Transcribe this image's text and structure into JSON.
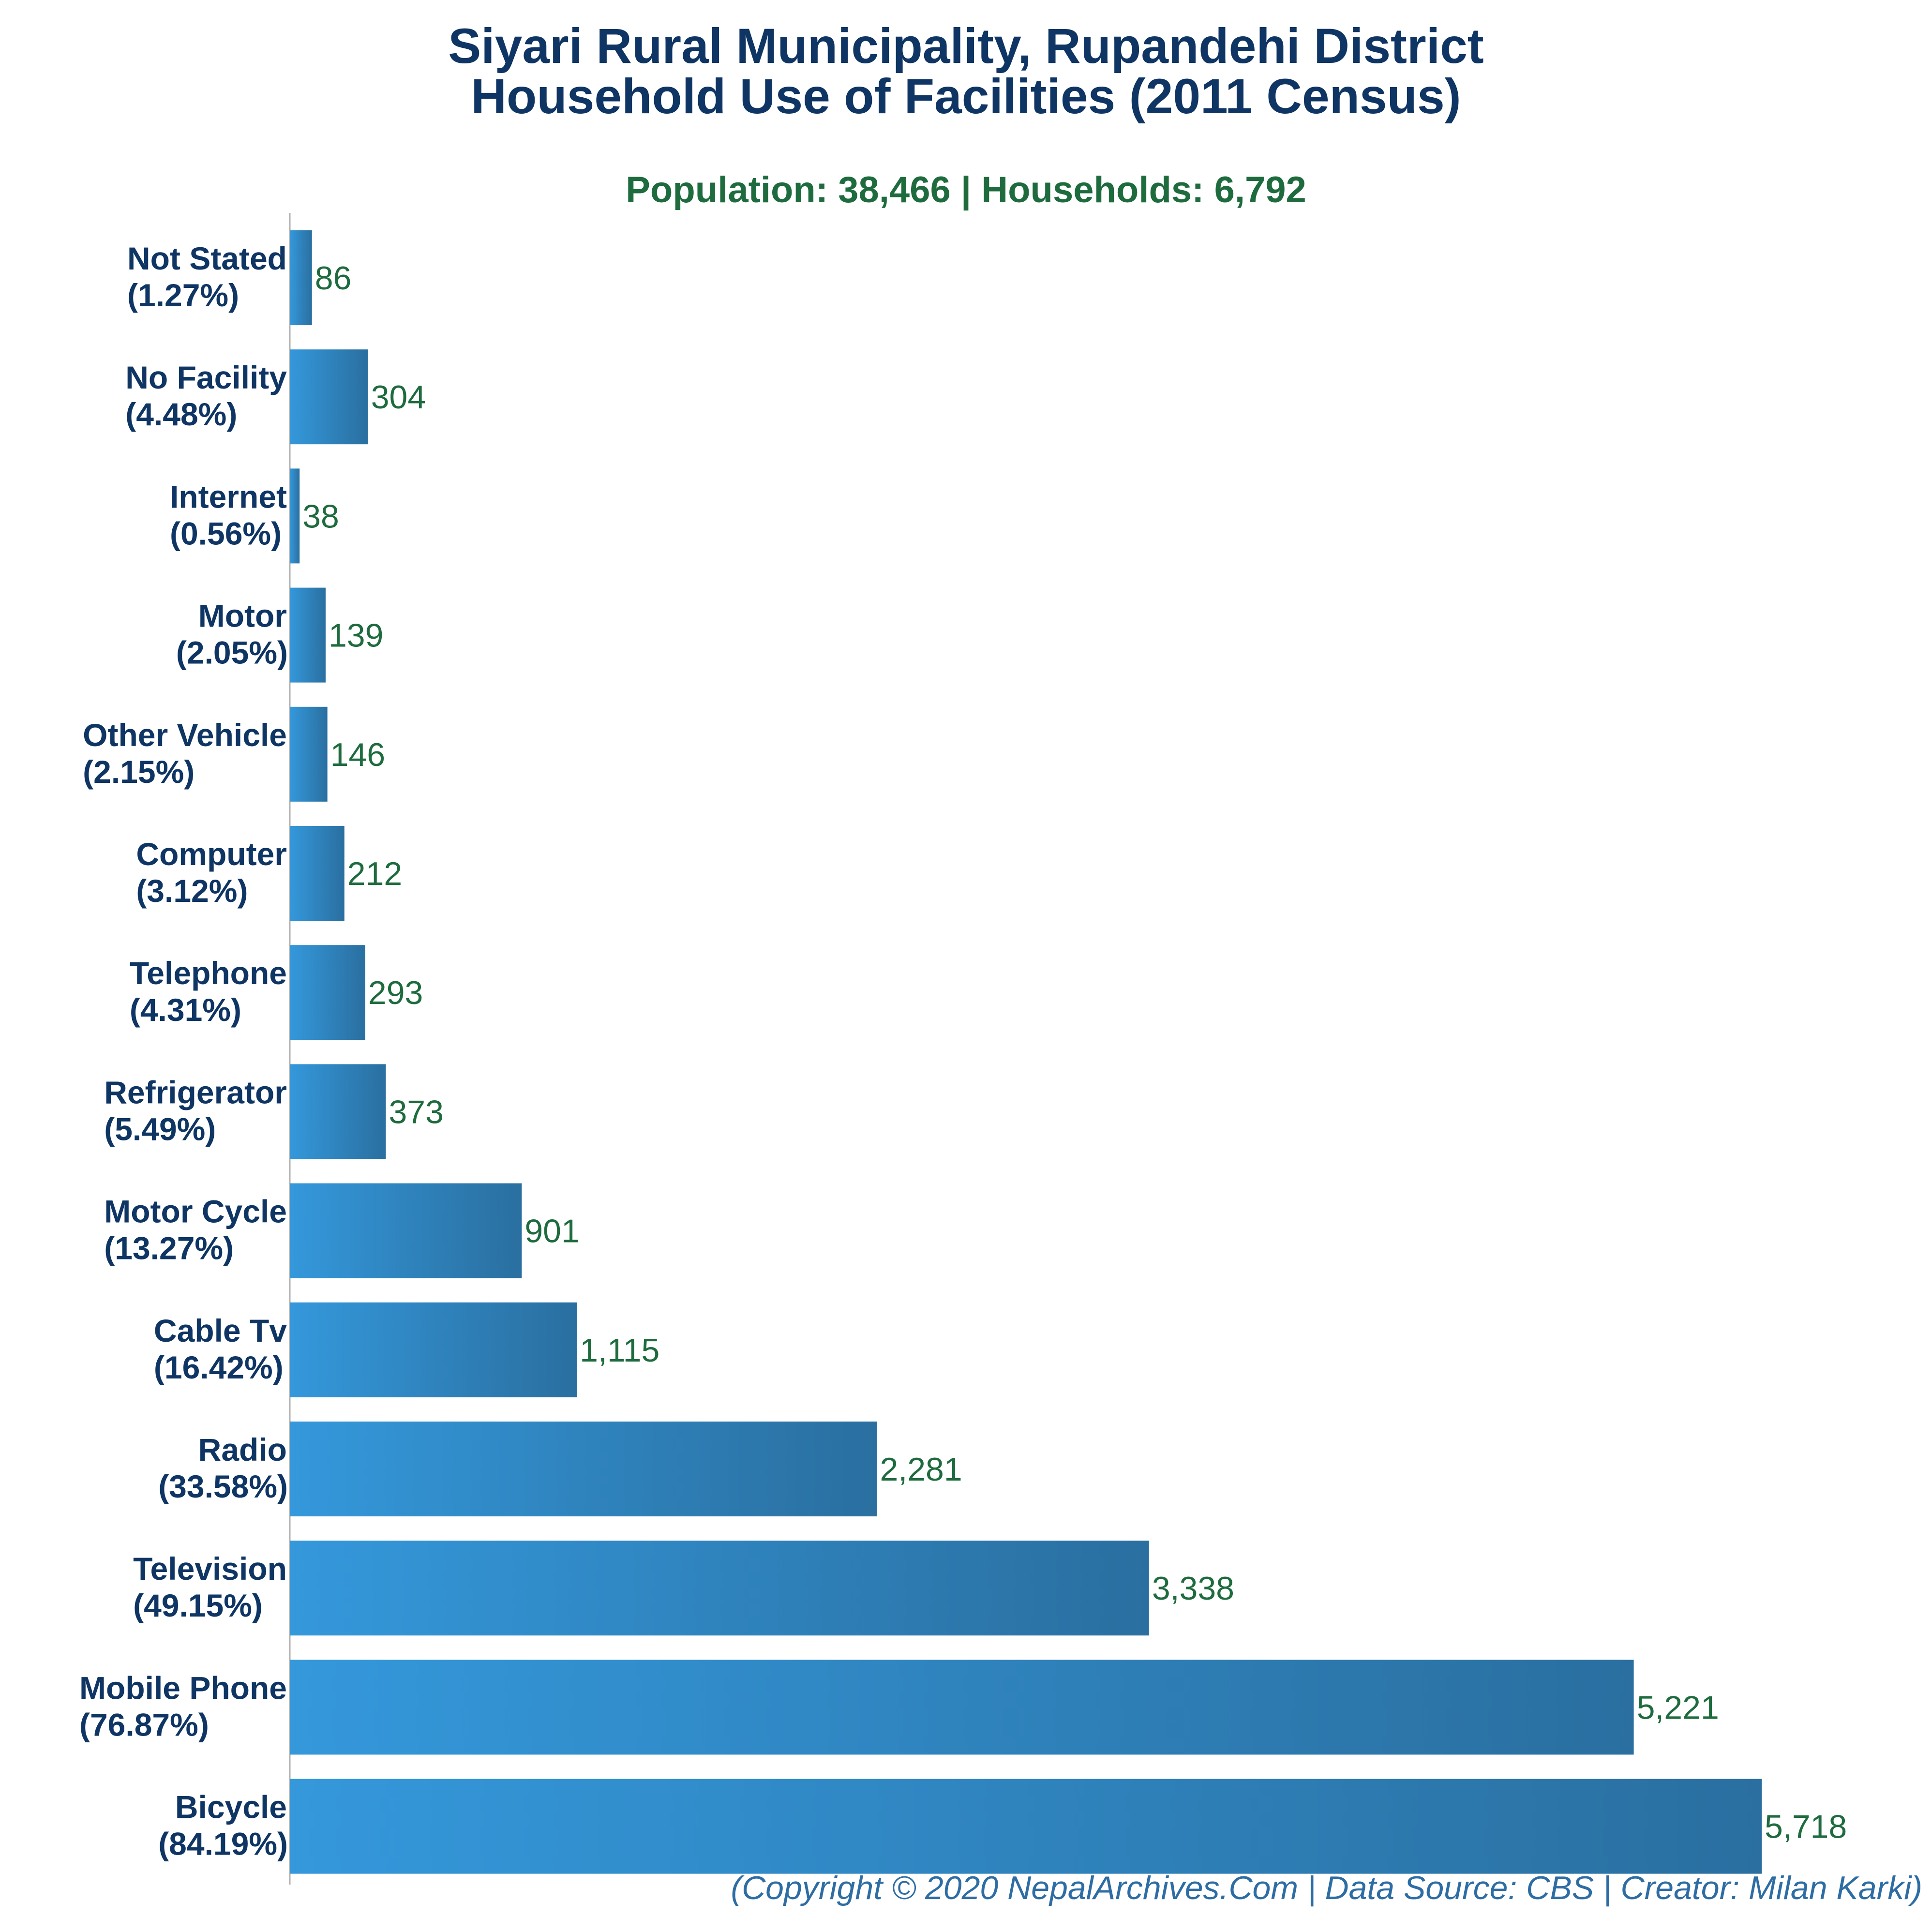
{
  "title_line_1": "Siyari Rural Municipality, Rupandehi District",
  "title_line_2": "Household Use of Facilities (2011 Census)",
  "subtitle": "Population: 38,466 | Households: 6,792",
  "footer": "(Copyright © 2020 NepalArchives.Com | Data Source: CBS | Creator: Milan Karki)",
  "colors": {
    "title": "#0e3563",
    "subtitle": "#1e6b3e",
    "value_label": "#1e6b3e",
    "category_label": "#0e3563",
    "bar_gradient_start": "#3498db",
    "bar_gradient_end": "#2a6fa0",
    "footer": "#2e6da4"
  },
  "chart_data": {
    "type": "bar",
    "orientation": "horizontal",
    "title": "Siyari Rural Municipality, Rupandehi District Household Use of Facilities (2011 Census)",
    "subtitle": "Population: 38,466 | Households: 6,792",
    "categories": [
      "Not Stated",
      "No Facility",
      "Internet",
      "Motor",
      "Other Vehicle",
      "Computer",
      "Telephone",
      "Refrigerator",
      "Motor Cycle",
      "Cable Tv",
      "Radio",
      "Television",
      "Mobile Phone",
      "Bicycle"
    ],
    "percent_labels": [
      "(1.27%)",
      "(4.48%)",
      "(0.56%)",
      "(2.05%)",
      "(2.15%)",
      "(3.12%)",
      "(4.31%)",
      "(5.49%)",
      "(13.27%)",
      "(16.42%)",
      "(33.58%)",
      "(49.15%)",
      "(76.87%)",
      "(84.19%)"
    ],
    "values": [
      86,
      304,
      38,
      139,
      146,
      212,
      293,
      373,
      901,
      1115,
      2281,
      3338,
      5221,
      5718
    ],
    "value_labels": [
      "86",
      "304",
      "38",
      "139",
      "146",
      "212",
      "293",
      "373",
      "901",
      "1,115",
      "2,281",
      "3,338",
      "5,221",
      "5,718"
    ],
    "xlabel": "",
    "ylabel": "",
    "xlim": [
      0,
      5718
    ],
    "grid": false,
    "legend": "none"
  }
}
